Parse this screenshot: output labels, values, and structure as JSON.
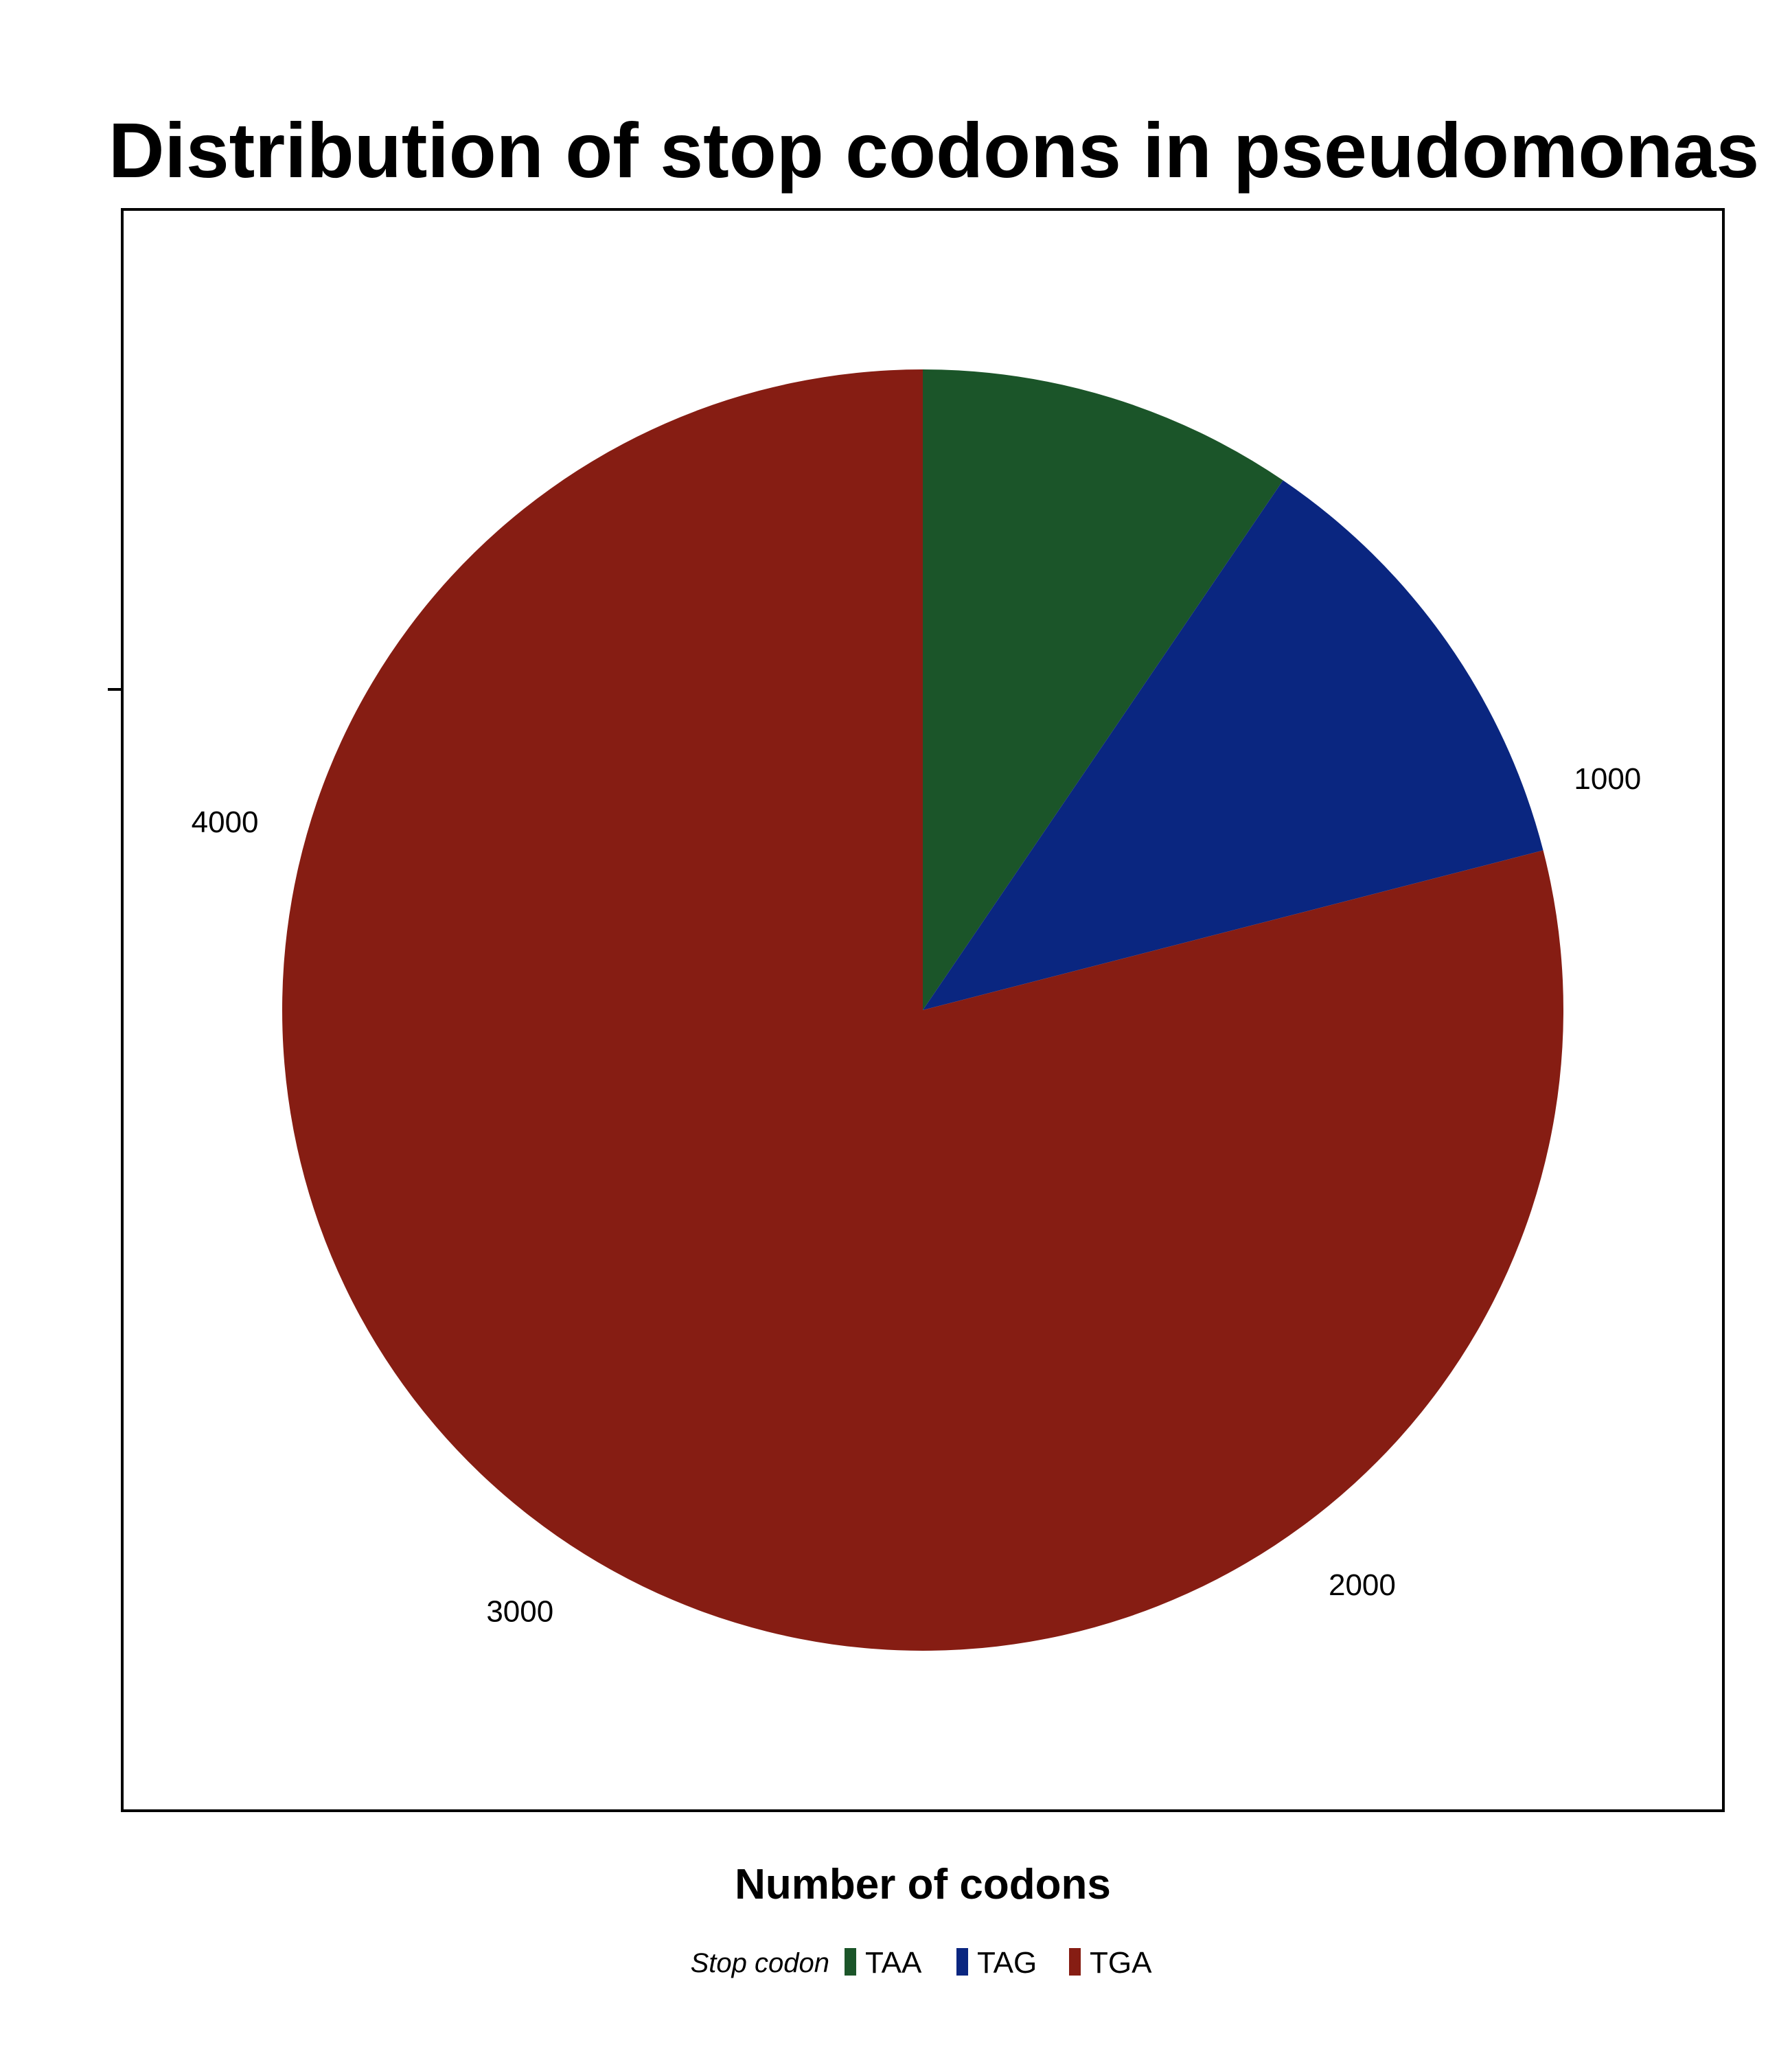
{
  "chart_data": {
    "type": "pie",
    "title": "Distribution of stop codons in pseudomonas",
    "xlabel": "Number of codons",
    "ylabel": "",
    "categories": [
      "TAA",
      "TAG",
      "TGA"
    ],
    "values": [
      480,
      580,
      3990
    ],
    "colors": [
      "#1b5529",
      "#0a2680",
      "#861d13"
    ],
    "radial_axis": {
      "range": [
        0,
        5050
      ],
      "ticks": [
        1000,
        2000,
        3000,
        4000
      ],
      "tick_labels": [
        "1000",
        "2000",
        "3000",
        "4000"
      ]
    },
    "start_angle": "12 o'clock",
    "direction": "clockwise",
    "legend": {
      "title": "Stop codon",
      "position": "bottom",
      "entries": [
        "TAA",
        "TAG",
        "TGA"
      ]
    },
    "grid": false
  }
}
